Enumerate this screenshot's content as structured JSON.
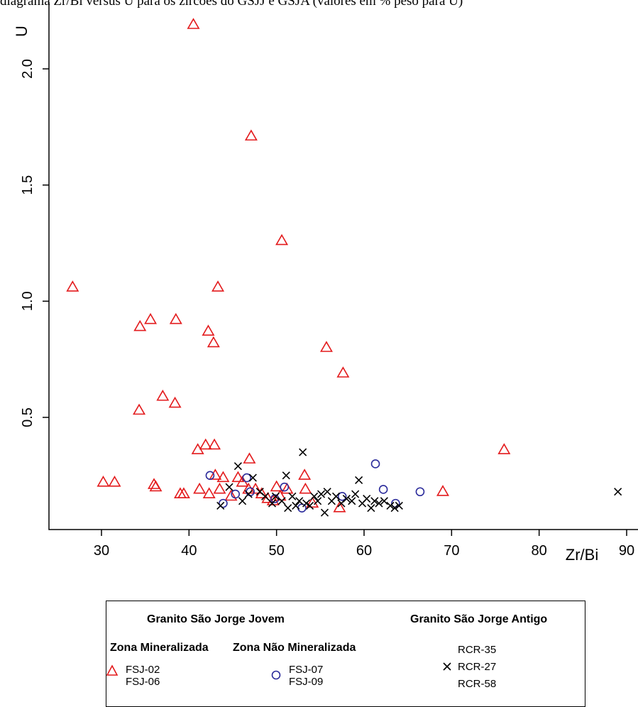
{
  "caption": "diagrama Zr/Bi versus U para os zircões do GSJJ e GSJA (valores em % peso para U)",
  "chart_data": {
    "type": "scatter",
    "title": "",
    "xlabel": "Zr/Bi",
    "ylabel": "U",
    "xlim": [
      24.5,
      90.5
    ],
    "ylim": [
      0.02,
      2.25
    ],
    "x_ticks": [
      30,
      40,
      50,
      60,
      70,
      80,
      90
    ],
    "y_ticks": [
      0.5,
      1.0,
      1.5,
      2.0
    ],
    "grid": false,
    "legend_position": "bottom",
    "colors": {
      "zona_mineralizada": "#e31a1c",
      "zona_nao_mineralizada": "#2b2b9b",
      "granito_antigo": "#000000"
    },
    "series": [
      {
        "name": "FSJ-02 / FSJ-06",
        "marker": "triangle",
        "points": [
          [
            40.5,
            2.19
          ],
          [
            47.1,
            1.71
          ],
          [
            50.6,
            1.26
          ],
          [
            26.7,
            1.06
          ],
          [
            43.3,
            1.06
          ],
          [
            34.4,
            0.89
          ],
          [
            35.6,
            0.92
          ],
          [
            38.5,
            0.92
          ],
          [
            42.2,
            0.87
          ],
          [
            42.8,
            0.82
          ],
          [
            55.7,
            0.8
          ],
          [
            57.6,
            0.69
          ],
          [
            37.0,
            0.59
          ],
          [
            38.4,
            0.56
          ],
          [
            34.3,
            0.53
          ],
          [
            41.0,
            0.36
          ],
          [
            41.9,
            0.38
          ],
          [
            42.9,
            0.38
          ],
          [
            46.9,
            0.32
          ],
          [
            76.0,
            0.36
          ],
          [
            30.2,
            0.22
          ],
          [
            31.5,
            0.22
          ],
          [
            36.0,
            0.21
          ],
          [
            36.2,
            0.2
          ],
          [
            39.0,
            0.17
          ],
          [
            39.4,
            0.17
          ],
          [
            41.2,
            0.19
          ],
          [
            42.3,
            0.17
          ],
          [
            43.0,
            0.25
          ],
          [
            43.9,
            0.24
          ],
          [
            43.5,
            0.19
          ],
          [
            44.8,
            0.16
          ],
          [
            45.6,
            0.24
          ],
          [
            46.1,
            0.22
          ],
          [
            46.8,
            0.19
          ],
          [
            47.6,
            0.19
          ],
          [
            48.3,
            0.17
          ],
          [
            49.0,
            0.15
          ],
          [
            49.6,
            0.14
          ],
          [
            50.0,
            0.2
          ],
          [
            50.4,
            0.16
          ],
          [
            51.2,
            0.19
          ],
          [
            53.2,
            0.25
          ],
          [
            53.3,
            0.19
          ],
          [
            54.1,
            0.13
          ],
          [
            57.2,
            0.11
          ],
          [
            69.0,
            0.18
          ]
        ]
      },
      {
        "name": "FSJ-07 / FSJ-09",
        "marker": "circle",
        "points": [
          [
            42.4,
            0.25
          ],
          [
            43.9,
            0.13
          ],
          [
            45.3,
            0.17
          ],
          [
            46.6,
            0.24
          ],
          [
            47.0,
            0.18
          ],
          [
            49.8,
            0.15
          ],
          [
            50.9,
            0.2
          ],
          [
            52.9,
            0.11
          ],
          [
            57.5,
            0.16
          ],
          [
            61.3,
            0.3
          ],
          [
            62.2,
            0.19
          ],
          [
            63.6,
            0.13
          ],
          [
            66.4,
            0.18
          ]
        ]
      },
      {
        "name": "RCR-27",
        "marker": "cross",
        "points": [
          [
            43.6,
            0.12
          ],
          [
            44.6,
            0.2
          ],
          [
            45.6,
            0.29
          ],
          [
            46.1,
            0.14
          ],
          [
            46.8,
            0.17
          ],
          [
            47.3,
            0.24
          ],
          [
            48.1,
            0.18
          ],
          [
            48.7,
            0.16
          ],
          [
            49.5,
            0.13
          ],
          [
            49.9,
            0.16
          ],
          [
            50.6,
            0.14
          ],
          [
            51.1,
            0.25
          ],
          [
            51.3,
            0.11
          ],
          [
            51.8,
            0.16
          ],
          [
            52.2,
            0.12
          ],
          [
            52.6,
            0.14
          ],
          [
            53.0,
            0.35
          ],
          [
            53.4,
            0.13
          ],
          [
            53.8,
            0.12
          ],
          [
            54.3,
            0.16
          ],
          [
            54.7,
            0.14
          ],
          [
            55.1,
            0.17
          ],
          [
            55.5,
            0.09
          ],
          [
            55.8,
            0.18
          ],
          [
            56.3,
            0.14
          ],
          [
            56.8,
            0.16
          ],
          [
            57.4,
            0.13
          ],
          [
            58.0,
            0.15
          ],
          [
            58.6,
            0.14
          ],
          [
            59.0,
            0.17
          ],
          [
            59.4,
            0.23
          ],
          [
            59.8,
            0.13
          ],
          [
            60.3,
            0.15
          ],
          [
            60.8,
            0.11
          ],
          [
            61.2,
            0.14
          ],
          [
            61.7,
            0.13
          ],
          [
            62.3,
            0.14
          ],
          [
            63.0,
            0.12
          ],
          [
            63.5,
            0.11
          ],
          [
            64.0,
            0.12
          ],
          [
            89.0,
            0.18
          ]
        ]
      }
    ],
    "legend": {
      "group_jovem": "Granito São Jorge Jovem",
      "group_antigo": "Granito São Jorge Antigo",
      "zona_mineralizada": "Zona Mineralizada",
      "zona_nao_mineralizada": "Zona Não Mineralizada",
      "mineralizada_items": [
        "FSJ-02",
        "FSJ-06"
      ],
      "nao_mineralizada_items": [
        "FSJ-07",
        "FSJ-09"
      ],
      "antigo_items": [
        "RCR-35",
        "RCR-27",
        "RCR-58"
      ]
    }
  }
}
